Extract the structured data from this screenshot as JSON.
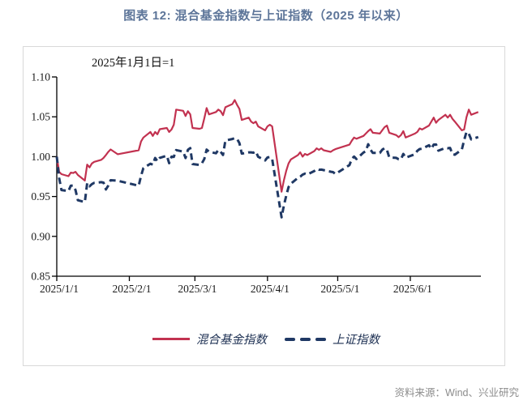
{
  "header": {
    "title": "图表 12: 混合基金指数与上证指数（2025 年以来）"
  },
  "footer": {
    "source": "资料来源：Wind、兴业研究"
  },
  "chart_data": {
    "type": "line",
    "title": "图表 12: 混合基金指数与上证指数（2025 年以来）",
    "note": "2025年1月1日=1",
    "legend_position": "bottom",
    "grid": false,
    "x_axis": {
      "kind": "date",
      "range_days": [
        0,
        181
      ],
      "ticks": [
        {
          "label": "2025/1/1",
          "day": 0
        },
        {
          "label": "2025/2/1",
          "day": 31
        },
        {
          "label": "2025/3/1",
          "day": 59
        },
        {
          "label": "2025/4/1",
          "day": 90
        },
        {
          "label": "2025/5/1",
          "day": 120
        },
        {
          "label": "2025/6/1",
          "day": 151
        }
      ]
    },
    "y_axis": {
      "range": [
        0.85,
        1.1
      ],
      "ticks": [
        {
          "label": "1.10",
          "value": 1.1
        },
        {
          "label": "1.05",
          "value": 1.05
        },
        {
          "label": "1.00",
          "value": 1.0
        },
        {
          "label": "0.95",
          "value": 0.95
        },
        {
          "label": "0.90",
          "value": 0.9
        },
        {
          "label": "0.85",
          "value": 0.85
        }
      ]
    },
    "x_dates": [
      "1/1",
      "1/2",
      "1/3",
      "1/6",
      "1/7",
      "1/8",
      "1/9",
      "1/10",
      "1/13",
      "1/14",
      "1/15",
      "1/16",
      "1/17",
      "1/20",
      "1/21",
      "1/22",
      "1/23",
      "1/24",
      "1/27",
      "2/5",
      "2/6",
      "2/7",
      "2/10",
      "2/11",
      "2/12",
      "2/13",
      "2/14",
      "2/17",
      "2/18",
      "2/19",
      "2/20",
      "2/21",
      "2/24",
      "2/25",
      "2/26",
      "2/27",
      "2/28",
      "3/3",
      "3/4",
      "3/5",
      "3/6",
      "3/7",
      "3/10",
      "3/11",
      "3/12",
      "3/13",
      "3/14",
      "3/17",
      "3/18",
      "3/19",
      "3/20",
      "3/21",
      "3/24",
      "3/25",
      "3/26",
      "3/27",
      "3/28",
      "3/31",
      "4/1",
      "4/2",
      "4/3",
      "4/7",
      "4/8",
      "4/9",
      "4/10",
      "4/11",
      "4/14",
      "4/15",
      "4/16",
      "4/17",
      "4/18",
      "4/21",
      "4/22",
      "4/23",
      "4/24",
      "4/25",
      "4/28",
      "4/29",
      "4/30",
      "5/6",
      "5/7",
      "5/8",
      "5/9",
      "5/12",
      "5/13",
      "5/14",
      "5/15",
      "5/16",
      "5/19",
      "5/20",
      "5/21",
      "5/22",
      "5/23",
      "5/26",
      "5/27",
      "5/28",
      "5/29",
      "5/30",
      "6/3",
      "6/4",
      "6/5",
      "6/6",
      "6/9",
      "6/10",
      "6/11",
      "6/12",
      "6/13",
      "6/16",
      "6/17",
      "6/18",
      "6/19",
      "6/20",
      "6/23",
      "6/24",
      "6/25",
      "6/26",
      "6/27",
      "6/30"
    ],
    "x_days": [
      0,
      1,
      2,
      5,
      6,
      7,
      8,
      9,
      12,
      13,
      14,
      15,
      16,
      19,
      20,
      21,
      22,
      23,
      26,
      35,
      36,
      37,
      40,
      41,
      42,
      43,
      44,
      47,
      48,
      49,
      50,
      51,
      54,
      55,
      56,
      57,
      58,
      61,
      62,
      63,
      64,
      65,
      68,
      69,
      70,
      71,
      72,
      75,
      76,
      77,
      78,
      79,
      82,
      83,
      84,
      85,
      86,
      89,
      90,
      91,
      92,
      96,
      97,
      98,
      99,
      100,
      103,
      104,
      105,
      106,
      107,
      110,
      111,
      112,
      113,
      114,
      117,
      118,
      119,
      125,
      126,
      127,
      128,
      131,
      132,
      133,
      134,
      135,
      138,
      139,
      140,
      141,
      142,
      145,
      146,
      147,
      148,
      149,
      153,
      154,
      155,
      156,
      159,
      160,
      161,
      162,
      163,
      166,
      167,
      168,
      169,
      170,
      173,
      174,
      175,
      176,
      177,
      180
    ],
    "series": [
      {
        "name": "混合基金指数",
        "style": "solid",
        "color": "#c23250",
        "values": [
          1.0,
          0.981,
          0.978,
          0.9755,
          0.98,
          0.9795,
          0.981,
          0.977,
          0.97,
          0.99,
          0.9865,
          0.9915,
          0.9935,
          0.996,
          0.9985,
          1.002,
          1.006,
          1.009,
          1.003,
          1.008,
          1.019,
          1.024,
          1.031,
          1.026,
          1.031,
          1.028,
          1.0345,
          1.036,
          1.031,
          1.034,
          1.04,
          1.059,
          1.0575,
          1.051,
          1.057,
          1.053,
          1.036,
          1.035,
          1.036,
          1.048,
          1.061,
          1.053,
          1.056,
          1.059,
          1.057,
          1.052,
          1.062,
          1.066,
          1.071,
          1.065,
          1.06,
          1.046,
          1.049,
          1.044,
          1.042,
          1.044,
          1.038,
          1.033,
          1.038,
          1.04,
          1.038,
          0.956,
          0.97,
          0.982,
          0.9915,
          0.9965,
          1.002,
          1.0055,
          1.0,
          1.0035,
          1.002,
          1.007,
          1.0105,
          1.0085,
          1.0105,
          1.008,
          1.006,
          1.008,
          1.0095,
          1.015,
          1.02,
          1.024,
          1.0225,
          1.026,
          1.029,
          1.032,
          1.0345,
          1.03,
          1.029,
          1.033,
          1.037,
          1.039,
          1.03,
          1.027,
          1.0245,
          1.027,
          1.032,
          1.024,
          1.029,
          1.031,
          1.0355,
          1.034,
          1.039,
          1.044,
          1.049,
          1.0425,
          1.046,
          1.0525,
          1.049,
          1.0525,
          1.0475,
          1.044,
          1.033,
          1.034,
          1.0495,
          1.059,
          1.0525,
          1.056
        ]
      },
      {
        "name": "上证指数",
        "style": "dashed",
        "color": "#1f3864",
        "values": [
          1.0,
          0.9734,
          0.9581,
          0.9568,
          0.9636,
          0.9637,
          0.9581,
          0.9453,
          0.943,
          0.9669,
          0.9628,
          0.9655,
          0.9672,
          0.968,
          0.9674,
          0.9588,
          0.9637,
          0.9704,
          0.9698,
          0.9635,
          0.9758,
          0.9857,
          0.9912,
          0.9899,
          0.9984,
          0.9942,
          0.9985,
          1.0012,
          0.9919,
          1.0,
          0.9997,
          1.0082,
          1.0063,
          0.9983,
          1.0085,
          1.0108,
          0.9908,
          0.9896,
          0.9918,
          0.9971,
          1.0088,
          1.0062,
          1.0043,
          1.0084,
          1.006,
          1.0021,
          1.0202,
          1.0222,
          1.0233,
          1.0223,
          1.0171,
          1.0039,
          1.0054,
          1.0054,
          1.005,
          1.0066,
          0.9999,
          0.9952,
          0.999,
          0.9995,
          0.9971,
          0.9239,
          0.9385,
          0.9508,
          0.9618,
          0.9661,
          0.9735,
          0.9749,
          0.9774,
          0.9787,
          0.9776,
          0.982,
          0.9845,
          0.9835,
          0.9837,
          0.9831,
          0.9811,
          0.9806,
          0.9783,
          0.9894,
          0.9973,
          1.0001,
          0.9971,
          1.0052,
          1.0069,
          1.0156,
          1.0087,
          1.0047,
          1.0047,
          1.0086,
          1.0107,
          1.0085,
          0.999,
          0.9985,
          0.9967,
          0.9965,
          1.0035,
          0.9987,
          1.003,
          1.0073,
          1.0096,
          1.01,
          1.0143,
          1.0099,
          1.0151,
          1.0152,
          1.0075,
          1.011,
          1.0106,
          1.011,
          1.0031,
          1.0024,
          1.0089,
          1.0205,
          1.0311,
          1.0288,
          1.0216,
          1.0246
        ]
      }
    ]
  }
}
